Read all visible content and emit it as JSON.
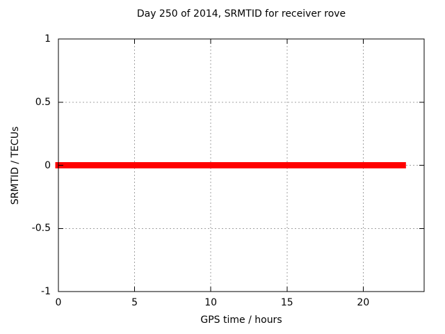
{
  "chart_data": {
    "type": "line",
    "title": "Day 250 of 2014, SRMTID for receiver rove",
    "xlabel": "GPS time / hours",
    "ylabel": "SRMTID / TECUs",
    "xlim": [
      0,
      24
    ],
    "ylim": [
      -1,
      1
    ],
    "xticks": [
      0,
      5,
      10,
      15,
      20
    ],
    "yticks": [
      -1,
      -0.5,
      0,
      0.5,
      1
    ],
    "grid": true,
    "legend": "none",
    "series": [
      {
        "name": "SRMTID",
        "color": "#ff0000",
        "line_width": 9,
        "x": [
          0,
          22.6
        ],
        "y": [
          0,
          0
        ]
      }
    ],
    "colors": {
      "background": "#ffffff",
      "axis": "#000000",
      "grid": "#a0a0a0",
      "text": "#000000"
    }
  }
}
